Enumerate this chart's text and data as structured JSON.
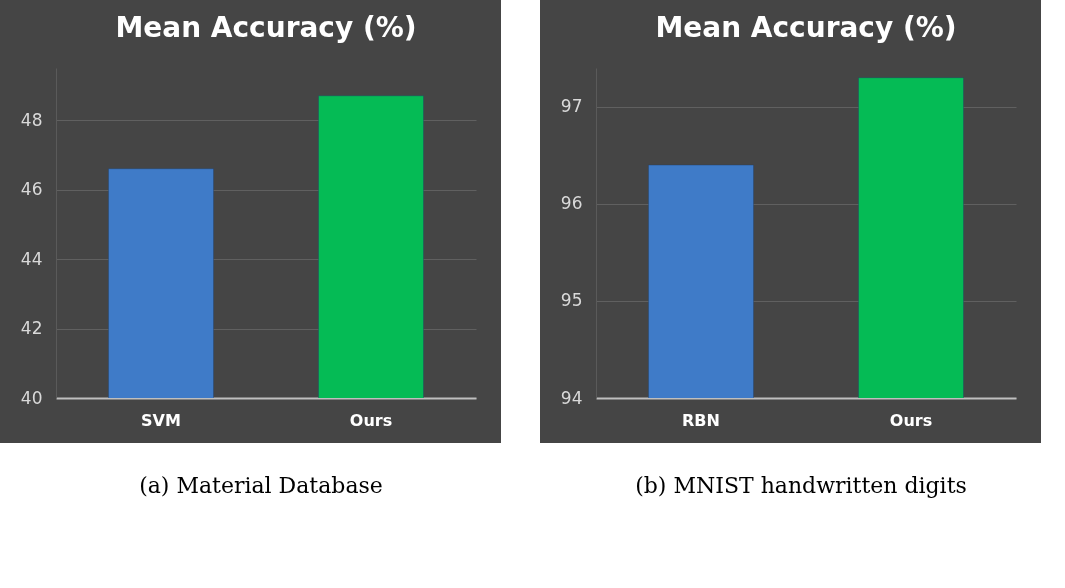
{
  "chart_data": [
    {
      "type": "bar",
      "title": "Mean Accuracy (%)",
      "categories": [
        "SVM",
        "Ours"
      ],
      "values": [
        46.6,
        48.7
      ],
      "colors": [
        "#3f7bc8",
        "#05bb55"
      ],
      "ylim": [
        40,
        49.5
      ],
      "yticks": [
        40,
        42,
        44,
        46,
        48
      ],
      "grid": "y",
      "annotations": [
        "(a) Material Database"
      ]
    },
    {
      "type": "bar",
      "title": "Mean Accuracy (%)",
      "categories": [
        "RBN",
        "Ours"
      ],
      "values": [
        96.4,
        97.3
      ],
      "colors": [
        "#3f7bc8",
        "#05bb55"
      ],
      "ylim": [
        94,
        97.4
      ],
      "yticks": [
        94,
        95,
        96,
        97
      ],
      "grid": "y",
      "annotations": [
        "(b) MNIST handwritten digits"
      ]
    }
  ]
}
